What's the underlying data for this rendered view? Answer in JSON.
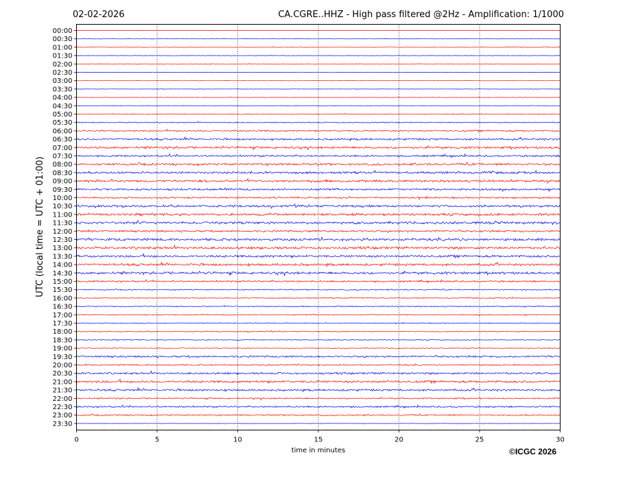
{
  "chart_data": {
    "type": "line",
    "title_left": "02-02-2026",
    "title_right": "CA.CGRE..HHZ - High pass filtered @2Hz - Amplification: 1/1000",
    "xlabel": "time in minutes",
    "ylabel": "UTC (local time = UTC + 01:00)",
    "xlim": [
      0,
      30
    ],
    "xticks": [
      "0",
      "5",
      "10",
      "15",
      "20",
      "25",
      "30"
    ],
    "vertical_gridlines": [
      5,
      10,
      15,
      20,
      25
    ],
    "colors": {
      "even_row": "#ff0000",
      "odd_row": "#0000ff"
    },
    "rows": [
      {
        "label": "00:00",
        "noise": 0.2
      },
      {
        "label": "00:30",
        "noise": 0.2
      },
      {
        "label": "01:00",
        "noise": 0.3
      },
      {
        "label": "01:30",
        "noise": 0.3
      },
      {
        "label": "02:00",
        "noise": 0.3
      },
      {
        "label": "02:30",
        "noise": 0.2
      },
      {
        "label": "03:00",
        "noise": 0.2
      },
      {
        "label": "03:30",
        "noise": 0.2
      },
      {
        "label": "04:00",
        "noise": 0.2
      },
      {
        "label": "04:30",
        "noise": 0.3
      },
      {
        "label": "05:00",
        "noise": 0.5
      },
      {
        "label": "05:30",
        "noise": 0.6
      },
      {
        "label": "06:00",
        "noise": 0.9
      },
      {
        "label": "06:30",
        "noise": 1.1
      },
      {
        "label": "07:00",
        "noise": 1.3
      },
      {
        "label": "07:30",
        "noise": 1.1
      },
      {
        "label": "08:00",
        "noise": 1.3
      },
      {
        "label": "08:30",
        "noise": 1.3
      },
      {
        "label": "09:00",
        "noise": 1.4
      },
      {
        "label": "09:30",
        "noise": 1.2
      },
      {
        "label": "10:00",
        "noise": 1.0
      },
      {
        "label": "10:30",
        "noise": 1.4
      },
      {
        "label": "11:00",
        "noise": 1.4
      },
      {
        "label": "11:30",
        "noise": 1.5
      },
      {
        "label": "12:00",
        "noise": 1.1
      },
      {
        "label": "12:30",
        "noise": 1.5
      },
      {
        "label": "13:00",
        "noise": 1.5
      },
      {
        "label": "13:30",
        "noise": 1.4
      },
      {
        "label": "14:00",
        "noise": 1.4
      },
      {
        "label": "14:30",
        "noise": 1.5
      },
      {
        "label": "15:00",
        "noise": 1.0
      },
      {
        "label": "15:30",
        "noise": 0.6
      },
      {
        "label": "16:00",
        "noise": 0.6
      },
      {
        "label": "16:30",
        "noise": 0.6
      },
      {
        "label": "17:00",
        "noise": 0.6
      },
      {
        "label": "17:30",
        "noise": 0.5
      },
      {
        "label": "18:00",
        "noise": 0.6
      },
      {
        "label": "18:30",
        "noise": 0.5
      },
      {
        "label": "19:00",
        "noise": 0.5
      },
      {
        "label": "19:30",
        "noise": 1.1
      },
      {
        "label": "20:00",
        "noise": 0.8
      },
      {
        "label": "20:30",
        "noise": 1.2
      },
      {
        "label": "21:00",
        "noise": 1.4
      },
      {
        "label": "21:30",
        "noise": 1.2
      },
      {
        "label": "22:00",
        "noise": 0.8
      },
      {
        "label": "22:30",
        "noise": 1.0
      },
      {
        "label": "23:00",
        "noise": 0.8
      },
      {
        "label": "23:30",
        "noise": 0.2
      }
    ]
  },
  "copyright": "©ICGC 2026"
}
